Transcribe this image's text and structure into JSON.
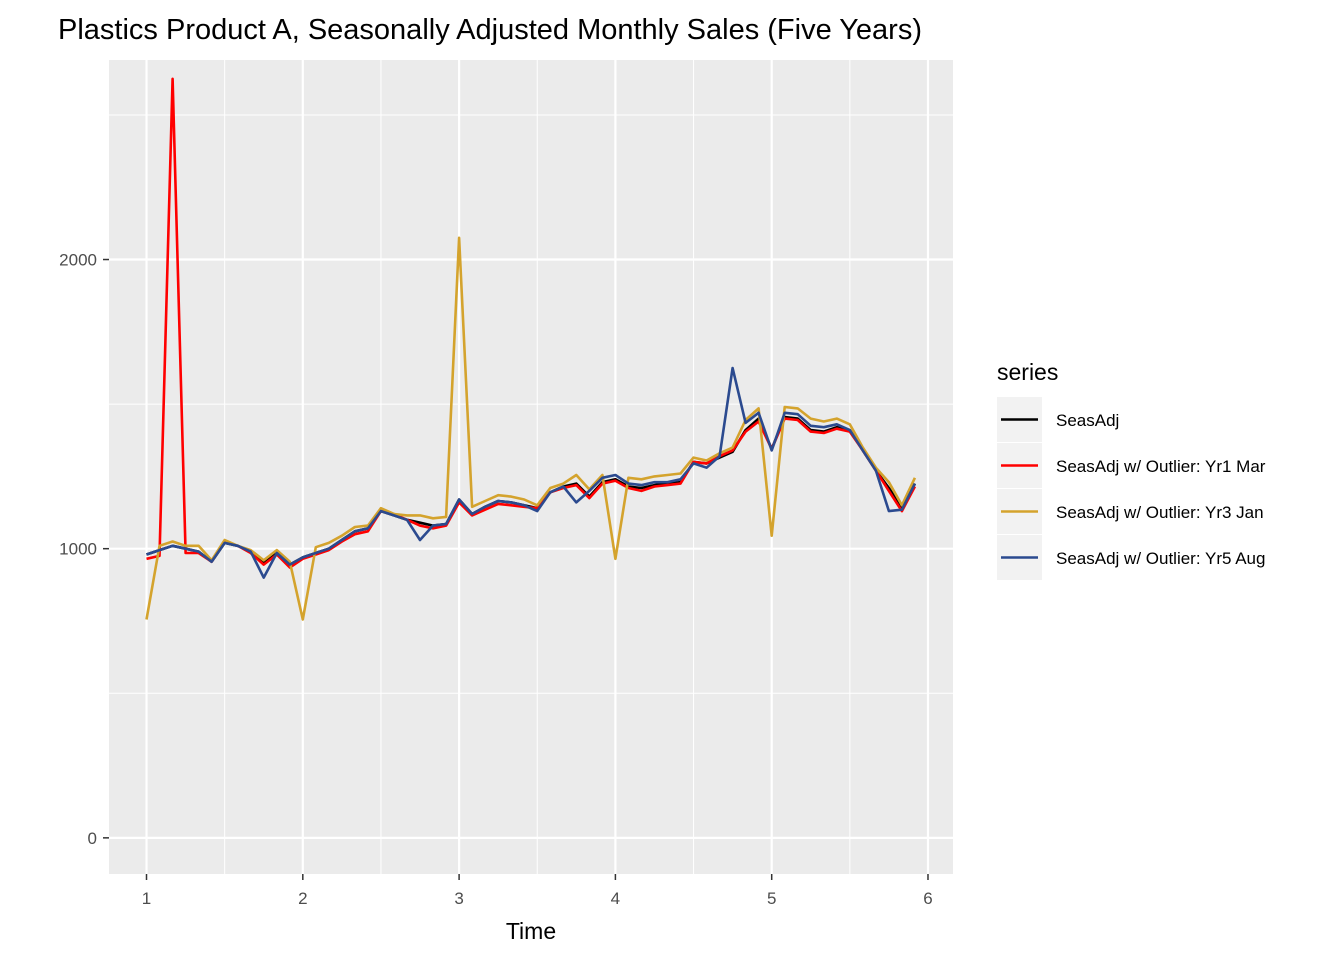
{
  "chart_data": {
    "type": "line",
    "title": "Plastics Product A, Seasonally Adjusted Monthly Sales (Five Years)",
    "xlabel": "Time",
    "ylabel": "",
    "xlim": [
      0.76,
      6.16
    ],
    "ylim": [
      -125,
      2690
    ],
    "x_ticks": [
      1,
      2,
      3,
      4,
      5,
      6
    ],
    "x_tick_labels": [
      "1",
      "2",
      "3",
      "4",
      "5",
      "6"
    ],
    "y_ticks": [
      0,
      1000,
      2000
    ],
    "y_tick_labels": [
      "0",
      "1000",
      "2000"
    ],
    "grid": true,
    "legend": {
      "title": "series",
      "position": "right"
    },
    "x_start": 1,
    "x_step": 0.08333,
    "series": [
      {
        "name": "SeasAdj",
        "color": "#000000",
        "values": [
          980,
          995,
          1010,
          1000,
          990,
          955,
          1020,
          1010,
          990,
          950,
          985,
          945,
          970,
          985,
          1000,
          1030,
          1060,
          1070,
          1130,
          1115,
          1100,
          1090,
          1080,
          1085,
          1170,
          1120,
          1145,
          1165,
          1160,
          1150,
          1140,
          1195,
          1215,
          1225,
          1180,
          1230,
          1240,
          1215,
          1210,
          1220,
          1225,
          1230,
          1300,
          1295,
          1315,
          1335,
          1410,
          1450,
          1345,
          1455,
          1450,
          1410,
          1405,
          1420,
          1410,
          1340,
          1270,
          1210,
          1140,
          1225
        ]
      },
      {
        "name": "SeasAdj w/ Outlier: Yr1 Mar",
        "color": "#ff0000",
        "values": [
          965,
          975,
          2625,
          985,
          985,
          955,
          1025,
          1010,
          985,
          945,
          980,
          935,
          965,
          980,
          995,
          1025,
          1050,
          1060,
          1130,
          1120,
          1100,
          1080,
          1070,
          1080,
          1160,
          1115,
          1135,
          1155,
          1150,
          1145,
          1140,
          1195,
          1210,
          1220,
          1175,
          1225,
          1235,
          1210,
          1200,
          1215,
          1220,
          1225,
          1300,
          1295,
          1320,
          1340,
          1405,
          1440,
          1345,
          1450,
          1445,
          1405,
          1400,
          1415,
          1405,
          1340,
          1270,
          1200,
          1130,
          1215
        ]
      },
      {
        "name": "SeasAdj w/ Outlier: Yr3 Jan",
        "color": "#d4a32d",
        "values": [
          755,
          1010,
          1025,
          1010,
          1010,
          960,
          1030,
          1010,
          995,
          960,
          995,
          955,
          755,
          1005,
          1020,
          1045,
          1075,
          1080,
          1140,
          1120,
          1115,
          1115,
          1105,
          1110,
          2075,
          1145,
          1165,
          1185,
          1180,
          1170,
          1150,
          1210,
          1225,
          1255,
          1205,
          1255,
          965,
          1245,
          1240,
          1250,
          1255,
          1260,
          1315,
          1305,
          1330,
          1350,
          1445,
          1485,
          1045,
          1490,
          1485,
          1450,
          1440,
          1450,
          1430,
          1350,
          1280,
          1230,
          1150,
          1245
        ]
      },
      {
        "name": "SeasAdj w/ Outlier: Yr5 Aug",
        "color": "#2b4a8f",
        "values": [
          980,
          995,
          1010,
          1000,
          990,
          955,
          1020,
          1010,
          990,
          900,
          985,
          945,
          970,
          985,
          1000,
          1030,
          1060,
          1070,
          1130,
          1115,
          1100,
          1030,
          1080,
          1085,
          1170,
          1120,
          1145,
          1165,
          1160,
          1150,
          1130,
          1195,
          1215,
          1160,
          1200,
          1245,
          1255,
          1225,
          1220,
          1230,
          1230,
          1240,
          1295,
          1280,
          1320,
          1625,
          1435,
          1470,
          1340,
          1470,
          1465,
          1425,
          1420,
          1430,
          1410,
          1340,
          1270,
          1130,
          1135,
          1225
        ]
      }
    ]
  }
}
